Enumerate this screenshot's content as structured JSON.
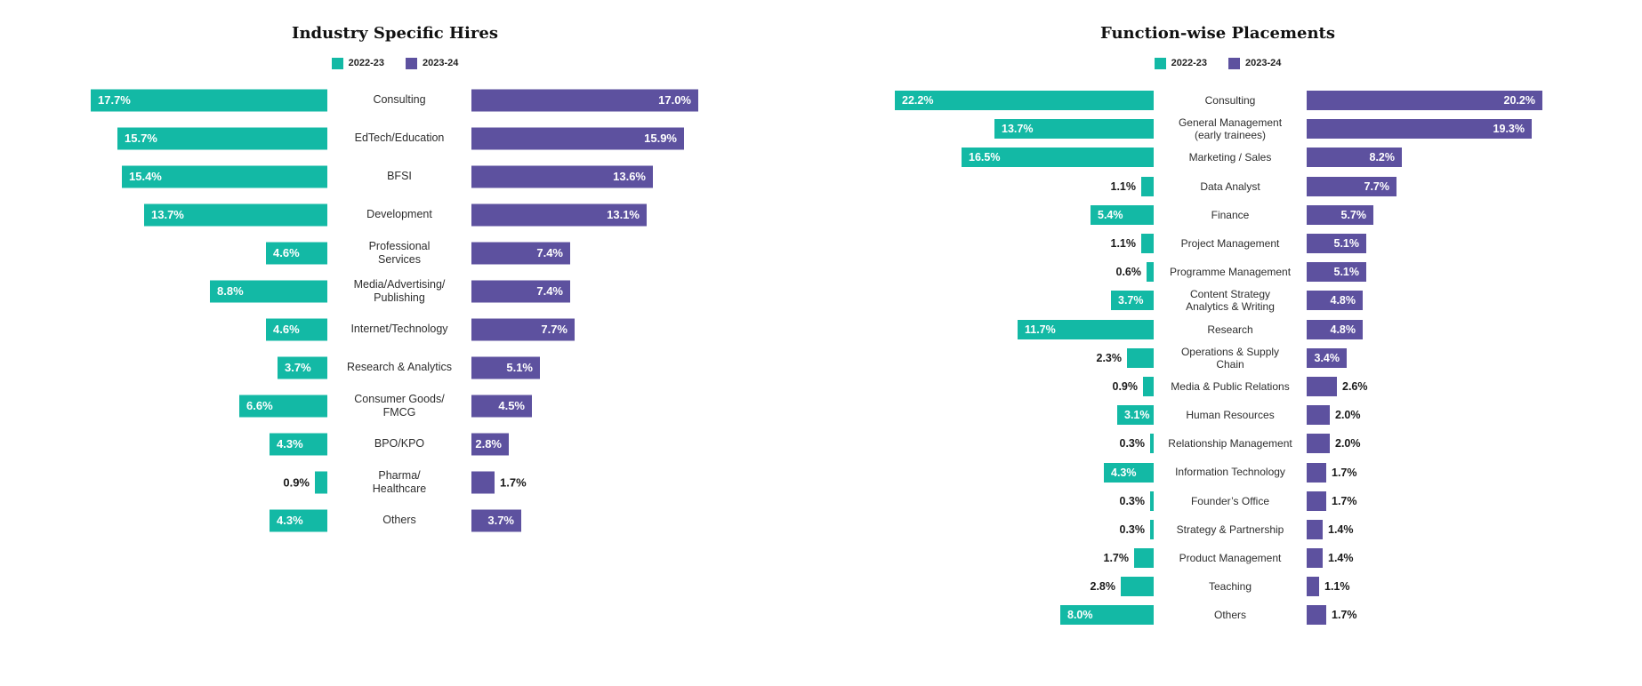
{
  "page": {
    "background": "#ffffff"
  },
  "colors": {
    "series_2022_23": "#13b9a5",
    "series_2023_24": "#5d519f",
    "value_label_inside": "#ffffff",
    "value_label_outside": "#1b1b1b",
    "category_label": "#2e2e2e",
    "title": "#111111"
  },
  "chart_data": [
    {
      "type": "bar",
      "variant": "diverging-butterfly",
      "title": "Industry Specific Hires",
      "legend": [
        "2022-23",
        "2023-24"
      ],
      "legend_position": "top-center",
      "orientation": "horizontal",
      "value_unit": "%",
      "axis": {
        "grid": false,
        "value_labels": "on-bars",
        "range_percent": [
          0,
          17.7
        ]
      },
      "categories": [
        "Consulting",
        "EdTech/Education",
        "BFSI",
        "Development",
        "Professional Services",
        "Media/Advertising/Publishing",
        "Internet/Technology",
        "Research & Analytics",
        "Consumer Goods/FMCG",
        "BPO/KPO",
        "Pharma/Healthcare",
        "Others"
      ],
      "categories_display": [
        "Consulting",
        "EdTech/Education",
        "BFSI",
        "Development",
        "Professional\nServices",
        "Media/Advertising/\nPublishing",
        "Internet/Technology",
        "Research & Analytics",
        "Consumer Goods/\nFMCG",
        "BPO/KPO",
        "Pharma/\nHealthcare",
        "Others"
      ],
      "series": [
        {
          "name": "2022-23",
          "values": [
            17.7,
            15.7,
            15.4,
            13.7,
            4.6,
            8.8,
            4.6,
            3.7,
            6.6,
            4.3,
            0.9,
            4.3
          ]
        },
        {
          "name": "2023-24",
          "values": [
            17.0,
            15.9,
            13.6,
            13.1,
            7.4,
            7.4,
            7.7,
            5.1,
            4.5,
            2.8,
            1.7,
            3.7
          ]
        }
      ]
    },
    {
      "type": "bar",
      "variant": "diverging-butterfly",
      "title": "Function-wise Placements",
      "legend": [
        "2022-23",
        "2023-24"
      ],
      "legend_position": "top-center",
      "orientation": "horizontal",
      "value_unit": "%",
      "axis": {
        "grid": false,
        "value_labels": "on-bars",
        "range_percent": [
          0,
          22.2
        ]
      },
      "categories": [
        "Consulting",
        "General Management (early trainees)",
        "Marketing / Sales",
        "Data Analyst",
        "Finance",
        "Project Management",
        "Programme Management",
        "Content Strategy Analytics & Writing",
        "Research",
        "Operations & Supply Chain",
        "Media & Public Relations",
        "Human Resources",
        "Relationship Management",
        "Information Technology",
        "Founder’s Office",
        "Strategy & Partnership",
        "Product Management",
        "Teaching",
        "Others"
      ],
      "categories_display": [
        "Consulting",
        "General Management\n(early trainees)",
        "Marketing / Sales",
        "Data Analyst",
        "Finance",
        "Project Management",
        "Programme Management",
        "Content Strategy\nAnalytics & Writing",
        "Research",
        "Operations & Supply\nChain",
        "Media & Public Relations",
        "Human Resources",
        "Relationship Management",
        "Information Technology",
        "Founder’s Office",
        "Strategy & Partnership",
        "Product Management",
        "Teaching",
        "Others"
      ],
      "series": [
        {
          "name": "2022-23",
          "values": [
            22.2,
            13.7,
            16.5,
            1.1,
            5.4,
            1.1,
            0.6,
            3.7,
            11.7,
            2.3,
            0.9,
            3.1,
            0.3,
            4.3,
            0.3,
            0.3,
            1.7,
            2.8,
            8.0
          ]
        },
        {
          "name": "2023-24",
          "values": [
            20.2,
            19.3,
            8.2,
            7.7,
            5.7,
            5.1,
            5.1,
            4.8,
            4.8,
            3.4,
            2.6,
            2.0,
            2.0,
            1.7,
            1.7,
            1.4,
            1.4,
            1.1,
            1.7
          ]
        }
      ]
    }
  ]
}
